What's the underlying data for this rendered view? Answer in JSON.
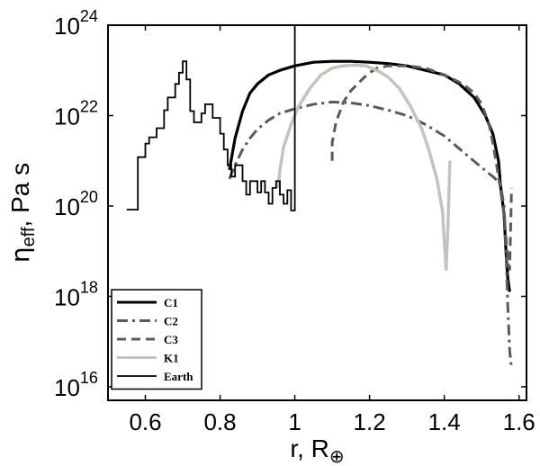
{
  "chart_data": {
    "type": "line",
    "title": "",
    "xlabel": "r, R",
    "xlabel_symbol": "⊕",
    "ylabel": "η",
    "ylabel_sub": "eff",
    "ylabel_suffix": ", Pa s",
    "xlim": [
      0.5,
      1.62
    ],
    "ylim_log10": [
      15.7,
      24
    ],
    "y_scale": "log",
    "grid": false,
    "legend_position": "bottom-left",
    "x_ticks": [
      0.6,
      0.8,
      1.0,
      1.2,
      1.4,
      1.6
    ],
    "x_tick_labels": [
      "0.6",
      "0.8",
      "1",
      "1.2",
      "1.4",
      "1.6"
    ],
    "y_ticks_log10": [
      16,
      18,
      20,
      22,
      24
    ],
    "y_tick_base": "10",
    "y_tick_exponents": [
      "16",
      "18",
      "20",
      "22",
      "24"
    ],
    "series": [
      {
        "name": "C1",
        "color": "#000000",
        "style": "solid",
        "width": 3.2,
        "x": [
          0.825,
          0.84,
          0.86,
          0.88,
          0.9,
          0.93,
          0.96,
          1.0,
          1.05,
          1.1,
          1.15,
          1.2,
          1.25,
          1.3,
          1.35,
          1.4,
          1.44,
          1.48,
          1.51,
          1.53,
          1.545,
          1.55,
          1.56,
          1.565,
          1.57,
          1.575
        ],
        "log10": [
          20.8,
          21.5,
          22.1,
          22.5,
          22.7,
          22.9,
          23.0,
          23.1,
          23.18,
          23.2,
          23.2,
          23.18,
          23.15,
          23.1,
          23.0,
          22.9,
          22.7,
          22.4,
          22.0,
          21.6,
          21.0,
          20.5,
          19.8,
          19.0,
          18.4,
          18.1
        ]
      },
      {
        "name": "C2",
        "color": "#5a5a5a",
        "style": "dashdot",
        "width": 3,
        "x": [
          0.825,
          0.84,
          0.86,
          0.88,
          0.9,
          0.93,
          0.96,
          1.0,
          1.05,
          1.1,
          1.15,
          1.2,
          1.25,
          1.3,
          1.35,
          1.4,
          1.45,
          1.5,
          1.53,
          1.55,
          1.56,
          1.565,
          1.57,
          1.575,
          1.58
        ],
        "log10": [
          20.6,
          20.9,
          21.25,
          21.5,
          21.7,
          21.9,
          22.05,
          22.15,
          22.25,
          22.3,
          22.28,
          22.22,
          22.12,
          22.0,
          21.8,
          21.55,
          21.2,
          20.85,
          20.65,
          20.5,
          20.0,
          19.0,
          17.8,
          16.8,
          16.4
        ]
      },
      {
        "name": "C3",
        "color": "#5a5a5a",
        "style": "dashed",
        "width": 3,
        "x": [
          1.1,
          1.1,
          1.11,
          1.13,
          1.15,
          1.18,
          1.2,
          1.22,
          1.25,
          1.3,
          1.35,
          1.4,
          1.45,
          1.48,
          1.5,
          1.52,
          1.53,
          1.54,
          1.55,
          1.56,
          1.565,
          1.57,
          1.575,
          1.58
        ],
        "log10": [
          21.0,
          21.4,
          21.85,
          22.3,
          22.55,
          22.8,
          22.95,
          23.05,
          23.1,
          23.1,
          23.05,
          22.9,
          22.7,
          22.5,
          22.25,
          21.8,
          21.4,
          20.9,
          20.4,
          19.8,
          19.3,
          18.8,
          18.6,
          20.4
        ]
      },
      {
        "name": "K1",
        "color": "#c4c4bc",
        "style": "solid",
        "width": 3.5,
        "x": [
          0.955,
          0.96,
          0.97,
          0.99,
          1.01,
          1.04,
          1.07,
          1.1,
          1.13,
          1.16,
          1.19,
          1.22,
          1.25,
          1.28,
          1.31,
          1.34,
          1.36,
          1.38,
          1.395,
          1.4,
          1.405,
          1.41,
          1.415
        ],
        "log10": [
          20.4,
          20.8,
          21.3,
          21.8,
          22.2,
          22.6,
          22.9,
          23.05,
          23.1,
          23.12,
          23.1,
          23.0,
          22.85,
          22.6,
          22.2,
          21.7,
          21.2,
          20.6,
          19.9,
          19.2,
          18.6,
          19.6,
          21.0
        ]
      },
      {
        "name": "Earth",
        "color": "#000000",
        "style": "step",
        "width": 1.8,
        "x": [
          0.55,
          0.58,
          0.58,
          0.6,
          0.6,
          0.61,
          0.61,
          0.63,
          0.63,
          0.65,
          0.65,
          0.66,
          0.66,
          0.68,
          0.68,
          0.69,
          0.69,
          0.7,
          0.7,
          0.71,
          0.71,
          0.72,
          0.72,
          0.73,
          0.73,
          0.75,
          0.75,
          0.76,
          0.76,
          0.78,
          0.78,
          0.8,
          0.8,
          0.81,
          0.81,
          0.82,
          0.82,
          0.83,
          0.83,
          0.84,
          0.84,
          0.86,
          0.86,
          0.87,
          0.87,
          0.88,
          0.88,
          0.9,
          0.9,
          0.91,
          0.91,
          0.92,
          0.92,
          0.93,
          0.93,
          0.94,
          0.94,
          0.95,
          0.95,
          0.96,
          0.96,
          0.97,
          0.97,
          0.98,
          0.98,
          0.99,
          0.99,
          1.0,
          1.0
        ],
        "log10": [
          19.92,
          19.92,
          21.08,
          21.08,
          21.38,
          21.38,
          21.52,
          21.52,
          21.72,
          21.72,
          22.12,
          22.12,
          22.4,
          22.4,
          22.7,
          22.7,
          22.95,
          22.95,
          23.2,
          23.2,
          22.8,
          22.8,
          22.1,
          22.1,
          21.85,
          21.85,
          22.05,
          22.05,
          22.25,
          22.25,
          21.95,
          21.95,
          21.6,
          21.6,
          21.25,
          21.25,
          20.9,
          20.9,
          20.65,
          20.65,
          20.9,
          20.9,
          20.55,
          20.55,
          20.25,
          20.25,
          20.55,
          20.55,
          20.3,
          20.3,
          20.55,
          20.55,
          20.3,
          20.3,
          20.05,
          20.05,
          20.4,
          20.4,
          20.55,
          20.55,
          20.25,
          20.25,
          20.05,
          20.05,
          20.35,
          20.35,
          19.9,
          19.9,
          24.0
        ]
      }
    ]
  }
}
